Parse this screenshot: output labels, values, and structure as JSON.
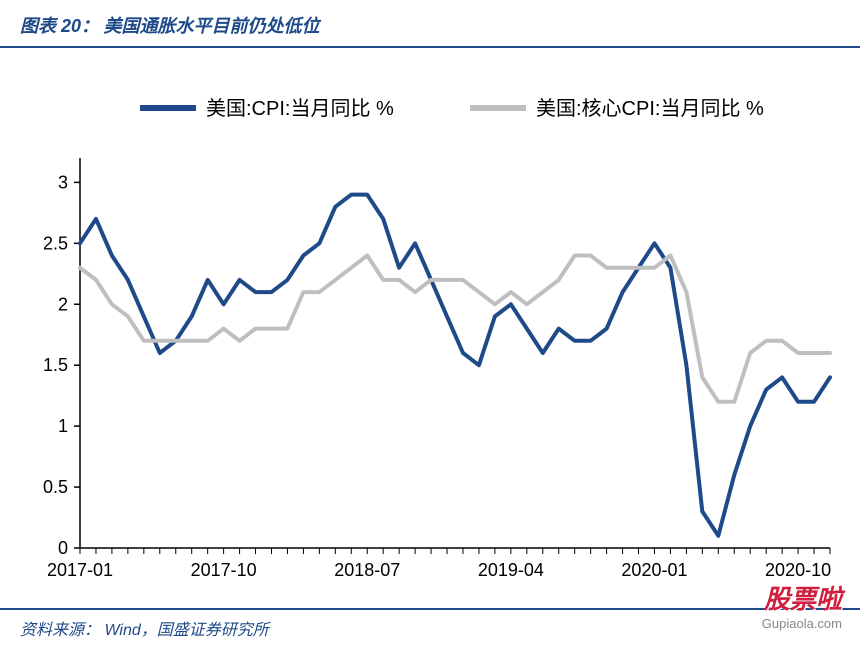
{
  "header": {
    "prefix": "图表 20：",
    "title": "美国通胀水平目前仍处低位"
  },
  "footer": {
    "prefix": "资料来源：",
    "source": "Wind，国盛证券研究所"
  },
  "watermark": {
    "cn": "股票啦",
    "en": "Gupiaola.com"
  },
  "chart": {
    "type": "line",
    "background_color": "#ffffff",
    "axis_color": "#000000",
    "tick_length": 6,
    "label_fontsize": 18,
    "legend": {
      "fontsize": 20,
      "swatch_width": 56,
      "swatch_stroke": 6,
      "items": [
        {
          "label": "美国:CPI:当月同比 %",
          "color": "#1e4a8a"
        },
        {
          "label": "美国:核心CPI:当月同比 %",
          "color": "#bfbfbf"
        }
      ]
    },
    "y": {
      "min": 0,
      "max": 3.2,
      "ticks": [
        0,
        0.5,
        1,
        1.5,
        2,
        2.5,
        3
      ],
      "tick_labels": [
        "0",
        "0.5",
        "1",
        "1.5",
        "2",
        "2.5",
        "3"
      ]
    },
    "x": {
      "count": 48,
      "tick_indices": [
        0,
        9,
        18,
        27,
        36,
        45
      ],
      "tick_labels": [
        "2017-01",
        "2017-10",
        "2018-07",
        "2019-04",
        "2020-01",
        "2020-10"
      ]
    },
    "series": [
      {
        "name": "cpi",
        "color": "#1e4a8a",
        "stroke_width": 4,
        "values": [
          2.5,
          2.7,
          2.4,
          2.2,
          1.9,
          1.6,
          1.7,
          1.9,
          2.2,
          2.0,
          2.2,
          2.1,
          2.1,
          2.2,
          2.4,
          2.5,
          2.8,
          2.9,
          2.9,
          2.7,
          2.3,
          2.5,
          2.2,
          1.9,
          1.6,
          1.5,
          1.9,
          2.0,
          1.8,
          1.6,
          1.8,
          1.7,
          1.7,
          1.8,
          2.1,
          2.3,
          2.5,
          2.3,
          1.5,
          0.3,
          0.1,
          0.6,
          1.0,
          1.3,
          1.4,
          1.2,
          1.2,
          1.4
        ]
      },
      {
        "name": "core_cpi",
        "color": "#bfbfbf",
        "stroke_width": 4,
        "values": [
          2.3,
          2.2,
          2.0,
          1.9,
          1.7,
          1.7,
          1.7,
          1.7,
          1.7,
          1.8,
          1.7,
          1.8,
          1.8,
          1.8,
          2.1,
          2.1,
          2.2,
          2.3,
          2.4,
          2.2,
          2.2,
          2.1,
          2.2,
          2.2,
          2.2,
          2.1,
          2.0,
          2.1,
          2.0,
          2.1,
          2.2,
          2.4,
          2.4,
          2.3,
          2.3,
          2.3,
          2.3,
          2.4,
          2.1,
          1.4,
          1.2,
          1.2,
          1.6,
          1.7,
          1.7,
          1.6,
          1.6,
          1.6
        ]
      }
    ]
  }
}
